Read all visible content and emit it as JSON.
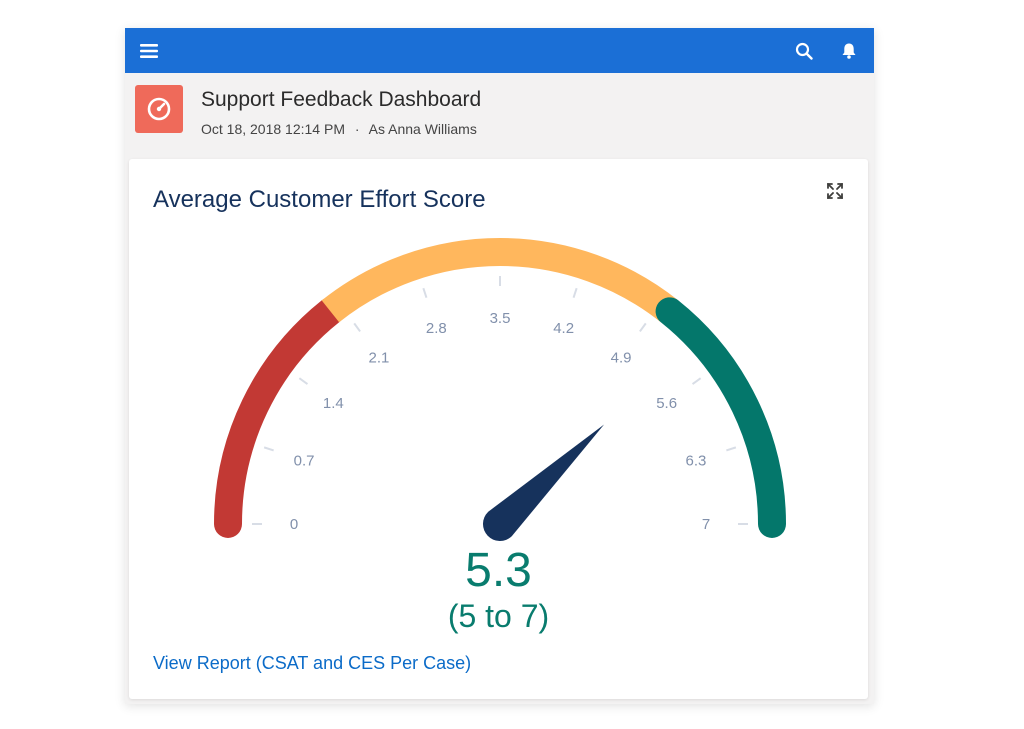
{
  "colors": {
    "nav_bar": "#1b6fd6",
    "app_icon": "#ef6a5a",
    "band_low": "#c23934",
    "band_mid": "#ffb75d",
    "band_high": "#04776b",
    "needle": "#16325c",
    "value_text": "#097c6e",
    "link": "#0b6bc8"
  },
  "topbar": {
    "menu_icon": "hamburger-menu-icon",
    "search_icon": "search-icon",
    "notifications_icon": "bell-icon"
  },
  "header": {
    "app_icon": "gauge-icon",
    "title": "Support Feedback Dashboard",
    "timestamp": "Oct 18, 2018 12:14 PM",
    "separator": "·",
    "viewer": "As Anna Williams"
  },
  "card": {
    "title": "Average Customer Effort Score",
    "expand_icon": "expand-icon",
    "value_display": "5.3",
    "range_display": "(5 to 7)",
    "link_text": "View Report (CSAT and CES Per Case)"
  },
  "chart_data": {
    "type": "gauge",
    "min": 0,
    "max": 7,
    "value": 5.3,
    "tick_labels": [
      "0",
      "0.7",
      "1.4",
      "2.1",
      "2.8",
      "3.5",
      "4.2",
      "4.9",
      "5.6",
      "6.3",
      "7"
    ],
    "bands": [
      {
        "from": 0,
        "to": 2,
        "color": "#c23934"
      },
      {
        "from": 2,
        "to": 5,
        "color": "#ffb75d"
      },
      {
        "from": 5,
        "to": 7,
        "color": "#04776b"
      }
    ]
  }
}
